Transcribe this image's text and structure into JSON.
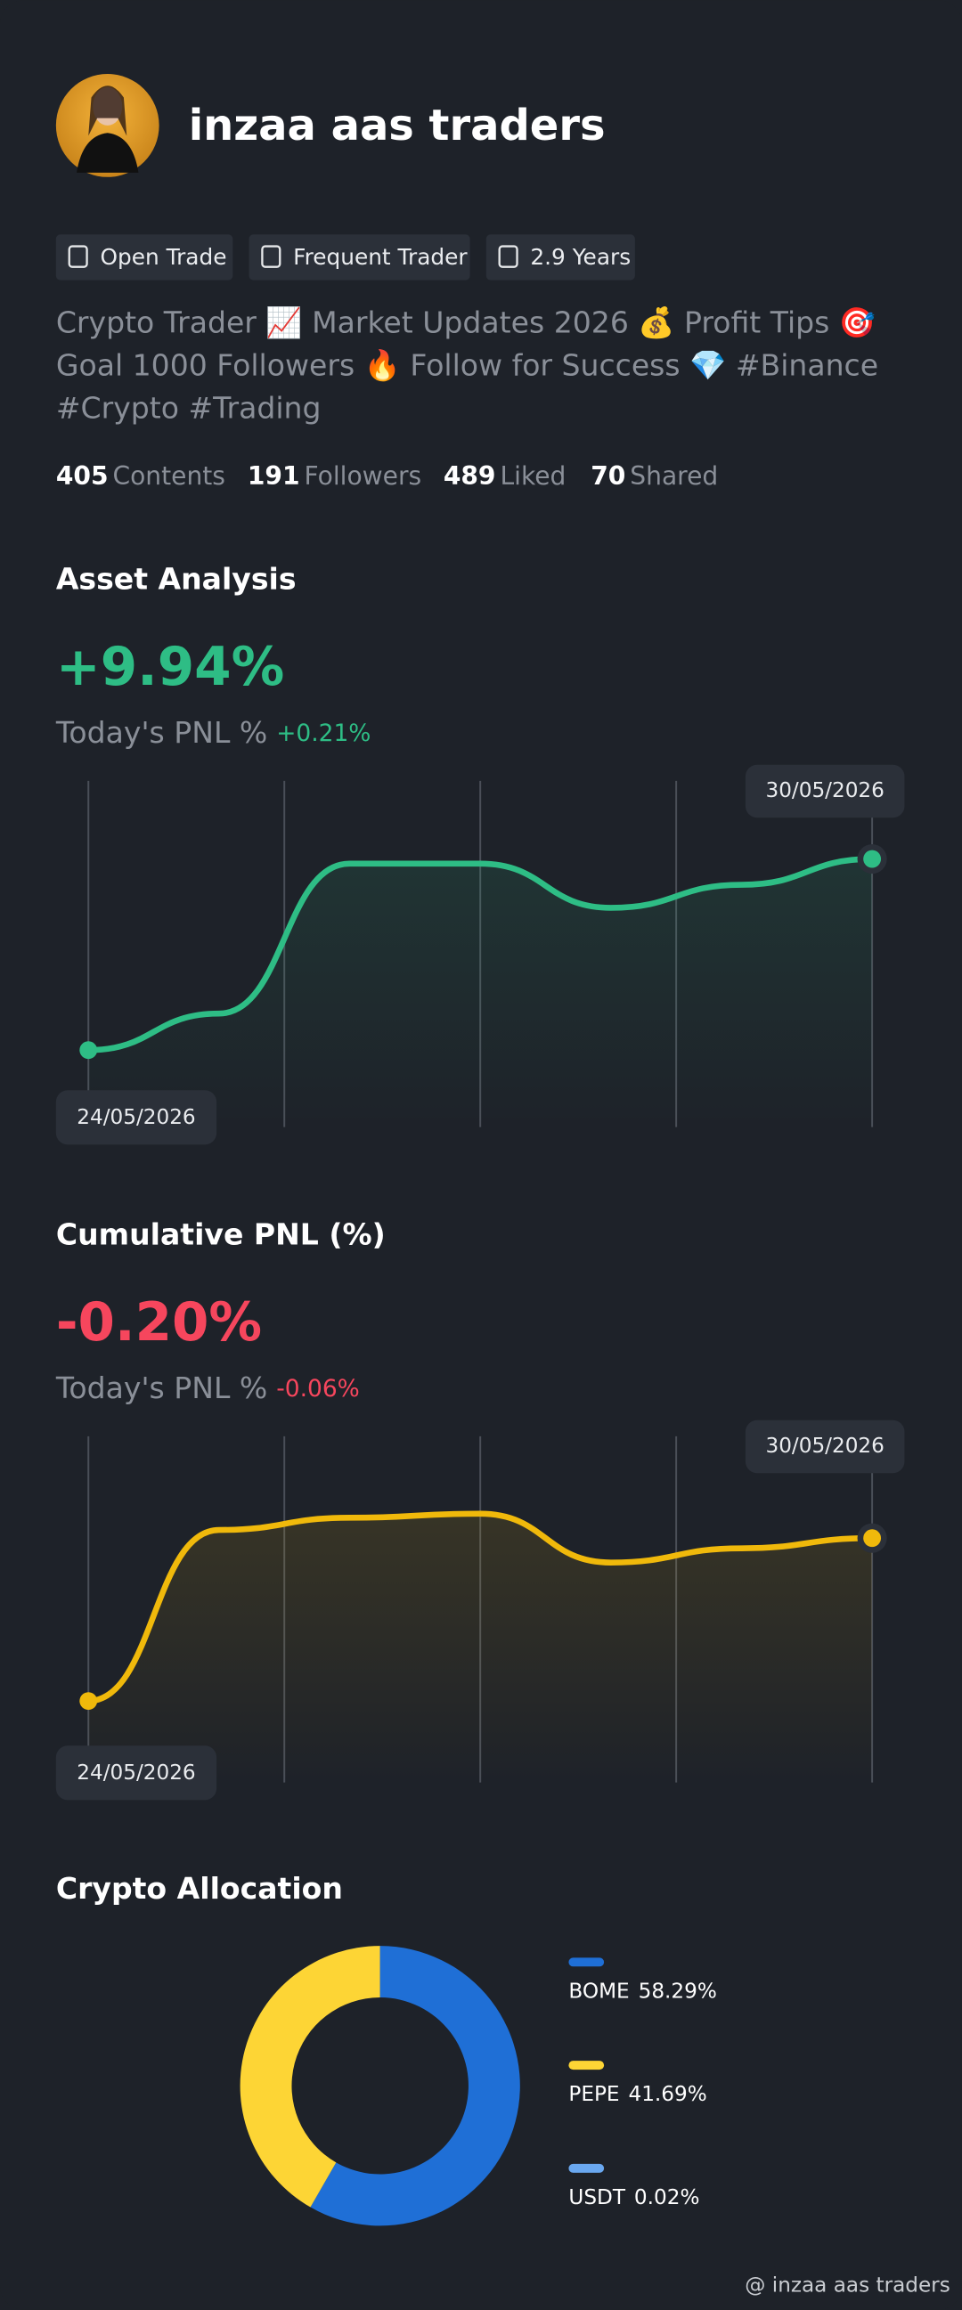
{
  "profile": {
    "name": "inzaa aas traders",
    "badges": [
      "Open Trade",
      "Frequent Trader",
      "2.9 Years"
    ],
    "bio": [
      "Crypto Trader 📈 Market Updates 2026 💰 Profit Tips 🎯",
      "Goal 1000 Followers 🔥 Follow for Success 💎 #Binance",
      "#Crypto #Trading"
    ],
    "stats": [
      {
        "value": 405,
        "label": "Contents"
      },
      {
        "value": 191,
        "label": "Followers"
      },
      {
        "value": 489,
        "label": "Liked"
      },
      {
        "value": 70,
        "label": "Shared"
      }
    ]
  },
  "chart_data": [
    {
      "type": "line",
      "title": "Asset Analysis",
      "headline": "+9.94%",
      "today_label": "Today's PNL %",
      "today_value": "+0.21%",
      "x": [
        "24/05/2026",
        null,
        null,
        null,
        null,
        null,
        "30/05/2026"
      ],
      "values": [
        0,
        1.9,
        9.7,
        9.7,
        7.4,
        8.6,
        9.94
      ],
      "color": "#2ebd85",
      "ylim": [
        -4,
        14
      ]
    },
    {
      "type": "line",
      "title": "Cumulative PNL (%)",
      "headline": "-0.20%",
      "today_label": "Today's PNL %",
      "today_value": "-0.06%",
      "x": [
        "24/05/2026",
        null,
        null,
        null,
        null,
        null,
        "30/05/2026"
      ],
      "values": [
        -1.0,
        -0.16,
        -0.1,
        -0.08,
        -0.32,
        -0.25,
        -0.2
      ],
      "color": "#f0b90b",
      "ylim": [
        -1.4,
        0.3
      ]
    },
    {
      "type": "pie",
      "title": "Crypto Allocation",
      "categories": [
        "BOME",
        "PEPE",
        "USDT"
      ],
      "values": [
        58.29,
        41.69,
        0.02
      ],
      "value_labels": [
        "58.29%",
        "41.69%",
        "0.02%"
      ],
      "colors": [
        "#1f6fd6",
        "#fdd535",
        "#6aa8f0"
      ]
    }
  ],
  "watermark": "@ inzaa aas traders"
}
